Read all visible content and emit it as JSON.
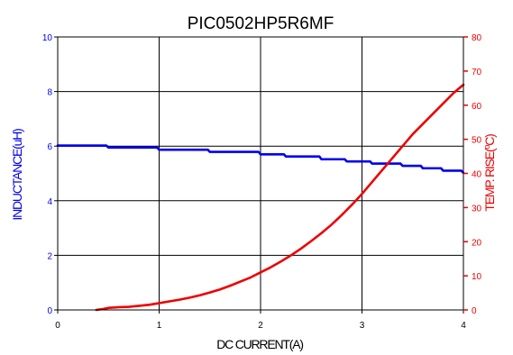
{
  "colors": {
    "inductance": "#0000ee",
    "temp_rise": "#ee0000",
    "axis": "#000000",
    "background": "#ffffff"
  },
  "chart_data": {
    "type": "line",
    "title": "PIC0502HP5R6MF",
    "xlabel": "DC CURRENT(A)",
    "ylabel_left": "INDUCTANCE(uH)",
    "ylabel_right_prefix": "TEMP. RISE(",
    "ylabel_right_sup": "o",
    "ylabel_right_suffix": "C)",
    "xlim": [
      0,
      4
    ],
    "ylim_left": [
      0,
      10
    ],
    "ylim_right": [
      0,
      80
    ],
    "x_ticks": [
      "0",
      "1",
      "2",
      "3",
      "4"
    ],
    "y_left_ticks": [
      "0",
      "2",
      "4",
      "6",
      "8",
      "10"
    ],
    "y_right_ticks": [
      "0",
      "10",
      "20",
      "30",
      "40",
      "50",
      "60",
      "70",
      "80"
    ],
    "grid": {
      "vertical": true,
      "horizontal": true
    },
    "series": [
      {
        "axis": "left",
        "color": "#0000ee",
        "x": [
          0,
          0.48,
          0.5,
          0.98,
          1.0,
          1.48,
          1.5,
          1.98,
          2.0,
          2.23,
          2.25,
          2.58,
          2.6,
          2.83,
          2.85,
          3.08,
          3.1,
          3.38,
          3.4,
          3.58,
          3.6,
          3.78,
          3.8,
          3.98,
          4.0
        ],
        "y": [
          6.02,
          6.02,
          5.95,
          5.95,
          5.87,
          5.87,
          5.79,
          5.79,
          5.7,
          5.7,
          5.62,
          5.62,
          5.52,
          5.52,
          5.44,
          5.44,
          5.36,
          5.36,
          5.28,
          5.28,
          5.19,
          5.19,
          5.1,
          5.1,
          5.02
        ]
      },
      {
        "axis": "right",
        "color": "#ee0000",
        "x": [
          0.38,
          0.45,
          0.5,
          0.6,
          0.7,
          0.8,
          0.9,
          1.0,
          1.1,
          1.2,
          1.3,
          1.4,
          1.5,
          1.6,
          1.7,
          1.8,
          1.9,
          2.0,
          2.1,
          2.2,
          2.3,
          2.4,
          2.5,
          2.6,
          2.7,
          2.8,
          2.9,
          3.0,
          3.1,
          3.2,
          3.3,
          3.4,
          3.5,
          3.6,
          3.7,
          3.8,
          3.9,
          4.0
        ],
        "y": [
          0,
          0.3,
          0.6,
          0.8,
          0.9,
          1.2,
          1.5,
          2.0,
          2.5,
          3.0,
          3.6,
          4.3,
          5.1,
          6.0,
          7.1,
          8.3,
          9.5,
          11.0,
          12.5,
          14.2,
          16.0,
          18.0,
          20.2,
          22.5,
          25.0,
          27.8,
          30.8,
          34.0,
          37.5,
          41.0,
          44.5,
          48.0,
          51.5,
          54.5,
          57.5,
          60.5,
          63.5,
          66.0
        ]
      }
    ]
  }
}
